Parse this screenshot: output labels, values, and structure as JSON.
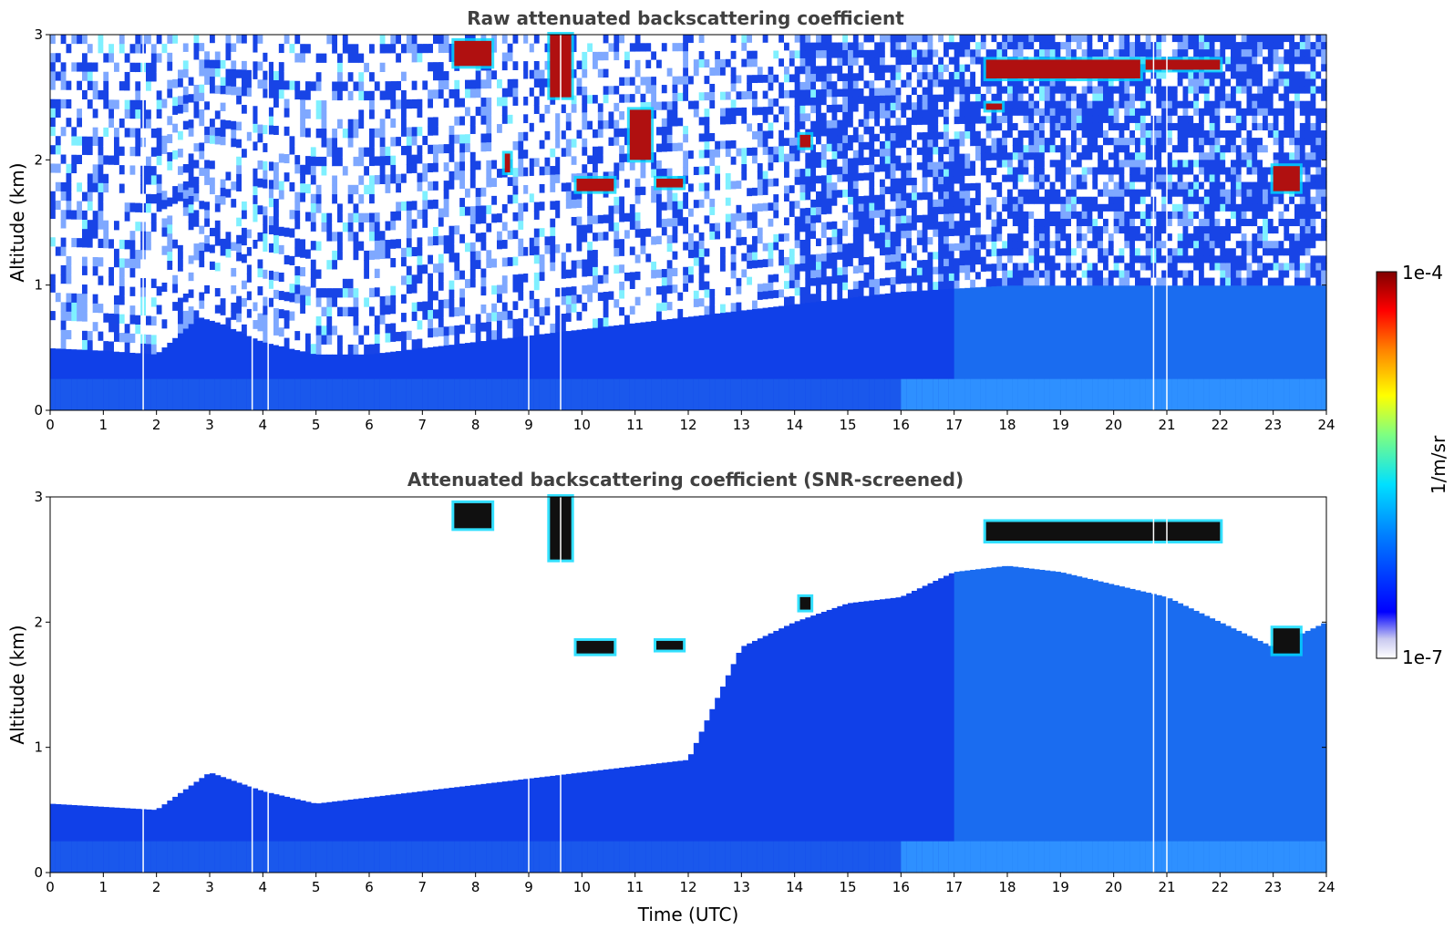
{
  "chart_data": [
    {
      "type": "heatmap",
      "title": "Raw attenuated backscattering coefficient",
      "xlabel": "",
      "ylabel": "Altitude (km)",
      "xlim": [
        0,
        24
      ],
      "ylim": [
        0,
        3
      ],
      "x_ticks": [
        "0",
        "1",
        "2",
        "3",
        "4",
        "5",
        "6",
        "7",
        "8",
        "9",
        "10",
        "11",
        "12",
        "13",
        "14",
        "15",
        "16",
        "17",
        "18",
        "19",
        "20",
        "21",
        "22",
        "23",
        "24"
      ],
      "y_ticks": [
        "0",
        "1",
        "2",
        "3"
      ],
      "data_gaps_utc": [
        1.75,
        3.8,
        4.1,
        9.0,
        9.6,
        20.75,
        21.0
      ],
      "boundary_layer_top_km": {
        "time_utc": [
          0,
          1,
          2,
          2.8,
          3.2,
          4,
          5,
          6,
          7,
          8,
          10,
          12,
          14,
          16,
          18,
          20,
          22,
          24
        ],
        "altitude_km": [
          0.5,
          0.48,
          0.45,
          0.75,
          0.7,
          0.55,
          0.45,
          0.45,
          0.5,
          0.55,
          0.65,
          0.75,
          0.85,
          0.95,
          1.0,
          1.0,
          1.0,
          1.0
        ]
      },
      "cloud_features": [
        {
          "t_start": 7.6,
          "t_end": 8.3,
          "alt_low_km": 2.75,
          "alt_high_km": 2.95
        },
        {
          "t_start": 8.55,
          "t_end": 8.65,
          "alt_low_km": 1.9,
          "alt_high_km": 2.05
        },
        {
          "t_start": 9.4,
          "t_end": 9.8,
          "alt_low_km": 2.5,
          "alt_high_km": 3.0
        },
        {
          "t_start": 9.9,
          "t_end": 10.6,
          "alt_low_km": 1.75,
          "alt_high_km": 1.85
        },
        {
          "t_start": 10.9,
          "t_end": 11.3,
          "alt_low_km": 2.0,
          "alt_high_km": 2.4
        },
        {
          "t_start": 11.4,
          "t_end": 11.9,
          "alt_low_km": 1.78,
          "alt_high_km": 1.85
        },
        {
          "t_start": 14.1,
          "t_end": 14.3,
          "alt_low_km": 2.1,
          "alt_high_km": 2.2
        },
        {
          "t_start": 17.6,
          "t_end": 20.5,
          "alt_low_km": 2.65,
          "alt_high_km": 2.8
        },
        {
          "t_start": 20.6,
          "t_end": 22.0,
          "alt_low_km": 2.72,
          "alt_high_km": 2.8
        },
        {
          "t_start": 17.6,
          "t_end": 17.9,
          "alt_low_km": 2.4,
          "alt_high_km": 2.45
        },
        {
          "t_start": 23.0,
          "t_end": 23.5,
          "alt_low_km": 1.75,
          "alt_high_km": 1.95
        }
      ]
    },
    {
      "type": "heatmap",
      "title": "Attenuated backscattering coefficient (SNR-screened)",
      "xlabel": "Time (UTC)",
      "ylabel": "Altitude (km)",
      "xlim": [
        0,
        24
      ],
      "ylim": [
        0,
        3
      ],
      "x_ticks": [
        "0",
        "1",
        "2",
        "3",
        "4",
        "5",
        "6",
        "7",
        "8",
        "9",
        "10",
        "11",
        "12",
        "13",
        "14",
        "15",
        "16",
        "17",
        "18",
        "19",
        "20",
        "21",
        "22",
        "23",
        "24"
      ],
      "y_ticks": [
        "0",
        "1",
        "2",
        "3"
      ],
      "data_gaps_utc": [
        1.75,
        3.8,
        4.1,
        9.0,
        9.6,
        20.75,
        21.0
      ],
      "screened_top_km": {
        "time_utc": [
          0,
          2,
          3,
          4,
          5,
          6,
          7,
          8,
          9,
          10,
          11,
          12,
          13,
          14,
          15,
          16,
          17,
          18,
          19,
          20,
          21,
          22,
          23,
          24
        ],
        "altitude_km": [
          0.55,
          0.5,
          0.8,
          0.65,
          0.55,
          0.6,
          0.65,
          0.7,
          0.75,
          0.8,
          0.85,
          0.9,
          1.8,
          2.0,
          2.15,
          2.2,
          2.4,
          2.45,
          2.4,
          2.3,
          2.2,
          2.0,
          1.8,
          2.0
        ]
      },
      "cloud_features": [
        {
          "t_start": 7.6,
          "t_end": 8.3,
          "alt_low_km": 2.75,
          "alt_high_km": 2.95
        },
        {
          "t_start": 9.4,
          "t_end": 9.8,
          "alt_low_km": 2.5,
          "alt_high_km": 3.0
        },
        {
          "t_start": 9.9,
          "t_end": 10.6,
          "alt_low_km": 1.75,
          "alt_high_km": 1.85
        },
        {
          "t_start": 11.4,
          "t_end": 11.9,
          "alt_low_km": 1.78,
          "alt_high_km": 1.85
        },
        {
          "t_start": 14.1,
          "t_end": 14.3,
          "alt_low_km": 2.1,
          "alt_high_km": 2.2
        },
        {
          "t_start": 17.6,
          "t_end": 22.0,
          "alt_low_km": 2.65,
          "alt_high_km": 2.8
        },
        {
          "t_start": 23.0,
          "t_end": 23.5,
          "alt_low_km": 1.75,
          "alt_high_km": 1.95
        }
      ]
    }
  ],
  "colorbar": {
    "label": "1/m/sr",
    "max_label": "1e-4",
    "min_label": "1e-7",
    "colors": [
      "#ffffff",
      "#c9c9f0",
      "#0000ff",
      "#0080ff",
      "#00e0ff",
      "#80ff80",
      "#ffff00",
      "#ff8000",
      "#ff0000",
      "#800000"
    ]
  }
}
